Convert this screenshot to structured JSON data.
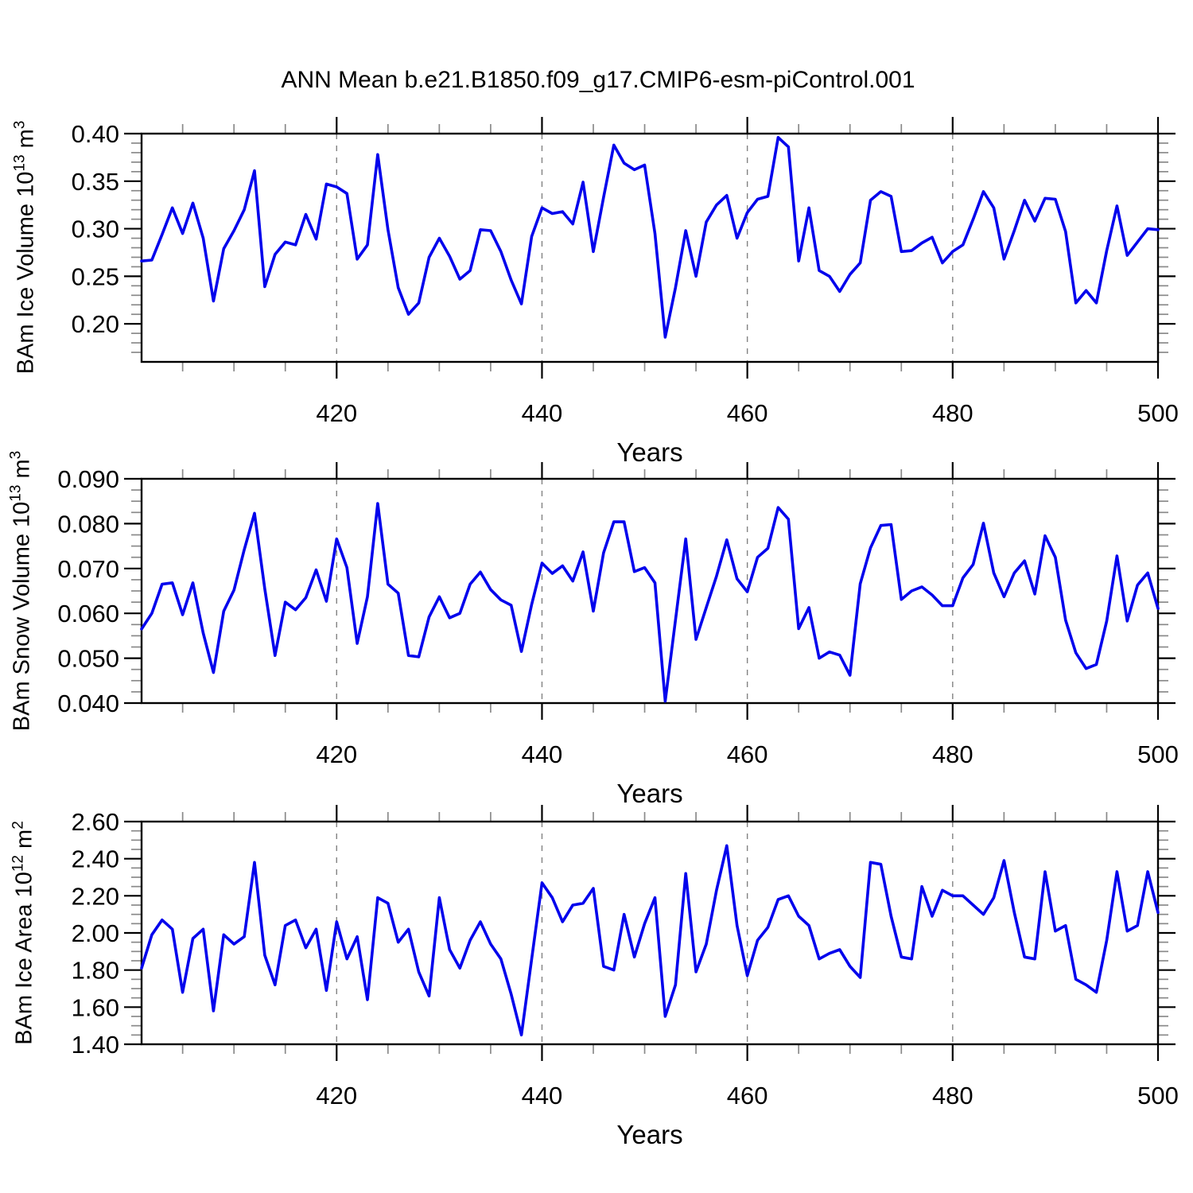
{
  "title": "ANN Mean b.e21.B1850.f09_g17.CMIP6-esm-piControl.001",
  "line_color": "#0202EC",
  "frame_color": "#000000",
  "grid_color": "#828282",
  "minor_tick_color": "#8a8a8a",
  "chart_data": [
    {
      "type": "line",
      "series_name": "BAm Ice Volume",
      "ylabel_prefix": "BAm Ice Volume 10",
      "ylabel_exp": "13",
      "ylabel_unit": " m",
      "ylabel_unit_exp": "3",
      "xlabel": "Years",
      "xlim": [
        401,
        500
      ],
      "ylim": [
        0.16,
        0.4
      ],
      "x_start": 401,
      "x_major_ticks": [
        420,
        440,
        460,
        480,
        500
      ],
      "x_major_labels": [
        "420",
        "440",
        "460",
        "480",
        "500"
      ],
      "x_minor_step": 5,
      "x_gridlines": [
        420,
        440,
        460,
        480
      ],
      "y_major_ticks": [
        0.2,
        0.25,
        0.3,
        0.35,
        0.4
      ],
      "y_major_labels": [
        "0.20",
        "0.25",
        "0.30",
        "0.35",
        "0.40"
      ],
      "y_minor_step": 0.01,
      "grid": "x-dashed",
      "legend": "none",
      "values": [
        0.266,
        0.267,
        0.294,
        0.322,
        0.295,
        0.327,
        0.29,
        0.224,
        0.279,
        0.298,
        0.32,
        0.361,
        0.239,
        0.273,
        0.286,
        0.283,
        0.315,
        0.289,
        0.347,
        0.344,
        0.337,
        0.268,
        0.283,
        0.378,
        0.299,
        0.238,
        0.21,
        0.222,
        0.27,
        0.29,
        0.271,
        0.247,
        0.256,
        0.299,
        0.298,
        0.276,
        0.246,
        0.221,
        0.292,
        0.322,
        0.316,
        0.318,
        0.305,
        0.349,
        0.276,
        0.333,
        0.388,
        0.369,
        0.362,
        0.367,
        0.295,
        0.186,
        0.238,
        0.298,
        0.25,
        0.307,
        0.325,
        0.335,
        0.29,
        0.317,
        0.331,
        0.334,
        0.396,
        0.386,
        0.266,
        0.322,
        0.256,
        0.25,
        0.234,
        0.252,
        0.264,
        0.33,
        0.339,
        0.334,
        0.276,
        0.277,
        0.285,
        0.291,
        0.264,
        0.276,
        0.283,
        0.31,
        0.339,
        0.322,
        0.268,
        0.298,
        0.33,
        0.308,
        0.332,
        0.331,
        0.297,
        0.222,
        0.235,
        0.222,
        0.277,
        0.324,
        0.272,
        0.286,
        0.3,
        0.299
      ]
    },
    {
      "type": "line",
      "series_name": "BAm Snow Volume",
      "ylabel_prefix": "BAm Snow Volume 10",
      "ylabel_exp": "13",
      "ylabel_unit": " m",
      "ylabel_unit_exp": "3",
      "xlabel": "Years",
      "xlim": [
        401,
        500
      ],
      "ylim": [
        0.04,
        0.09
      ],
      "x_start": 401,
      "x_major_ticks": [
        420,
        440,
        460,
        480,
        500
      ],
      "x_major_labels": [
        "420",
        "440",
        "460",
        "480",
        "500"
      ],
      "x_minor_step": 5,
      "x_gridlines": [
        420,
        440,
        460,
        480
      ],
      "y_major_ticks": [
        0.04,
        0.05,
        0.06,
        0.07,
        0.08,
        0.09
      ],
      "y_major_labels": [
        "0.040",
        "0.050",
        "0.060",
        "0.070",
        "0.080",
        "0.090"
      ],
      "y_minor_step": 0.0025,
      "grid": "x-dashed",
      "legend": "none",
      "values": [
        0.0565,
        0.06,
        0.0665,
        0.0668,
        0.0597,
        0.0668,
        0.0556,
        0.0468,
        0.0605,
        0.0652,
        0.0742,
        0.0823,
        0.0655,
        0.0506,
        0.0625,
        0.0608,
        0.0635,
        0.0697,
        0.0627,
        0.0766,
        0.0702,
        0.0533,
        0.0637,
        0.0845,
        0.0665,
        0.0645,
        0.0506,
        0.0503,
        0.0592,
        0.0637,
        0.059,
        0.06,
        0.0665,
        0.0692,
        0.0653,
        0.063,
        0.0618,
        0.0515,
        0.062,
        0.0712,
        0.0689,
        0.0706,
        0.0672,
        0.0737,
        0.0605,
        0.0735,
        0.0804,
        0.0804,
        0.0693,
        0.0702,
        0.0668,
        0.0404,
        0.0585,
        0.0766,
        0.0542,
        0.0613,
        0.0683,
        0.0764,
        0.0677,
        0.0648,
        0.0725,
        0.0745,
        0.0836,
        0.081,
        0.0566,
        0.0613,
        0.05,
        0.0514,
        0.0507,
        0.0462,
        0.0666,
        0.0746,
        0.0796,
        0.0798,
        0.0631,
        0.065,
        0.0659,
        0.0641,
        0.0617,
        0.0617,
        0.0679,
        0.0709,
        0.0801,
        0.069,
        0.0637,
        0.069,
        0.0717,
        0.0643,
        0.0773,
        0.0725,
        0.0585,
        0.0512,
        0.0477,
        0.0486,
        0.0583,
        0.0728,
        0.0583,
        0.0663,
        0.069,
        0.0611
      ]
    },
    {
      "type": "line",
      "series_name": "BAm Ice Area",
      "ylabel_prefix": "BAm Ice Area 10",
      "ylabel_exp": "12",
      "ylabel_unit": " m",
      "ylabel_unit_exp": "2",
      "xlabel": "Years",
      "xlim": [
        401,
        500
      ],
      "ylim": [
        1.4,
        2.6
      ],
      "x_start": 401,
      "x_major_ticks": [
        420,
        440,
        460,
        480,
        500
      ],
      "x_major_labels": [
        "420",
        "440",
        "460",
        "480",
        "500"
      ],
      "x_minor_step": 5,
      "x_gridlines": [
        420,
        440,
        460,
        480
      ],
      "y_major_ticks": [
        1.4,
        1.6,
        1.8,
        2.0,
        2.2,
        2.4,
        2.6
      ],
      "y_major_labels": [
        "1.40",
        "1.60",
        "1.80",
        "2.00",
        "2.20",
        "2.40",
        "2.60"
      ],
      "y_minor_step": 0.05,
      "grid": "x-dashed",
      "legend": "none",
      "values": [
        1.81,
        1.99,
        2.07,
        2.02,
        1.68,
        1.97,
        2.02,
        1.58,
        1.99,
        1.94,
        1.98,
        2.38,
        1.88,
        1.72,
        2.04,
        2.07,
        1.92,
        2.02,
        1.69,
        2.06,
        1.86,
        1.98,
        1.64,
        2.19,
        2.16,
        1.95,
        2.02,
        1.79,
        1.66,
        2.19,
        1.91,
        1.81,
        1.96,
        2.06,
        1.94,
        1.86,
        1.67,
        1.45,
        1.86,
        2.27,
        2.19,
        2.06,
        2.15,
        2.16,
        2.24,
        1.82,
        1.8,
        2.1,
        1.87,
        2.05,
        2.19,
        1.55,
        1.72,
        2.32,
        1.79,
        1.94,
        2.23,
        2.47,
        2.04,
        1.77,
        1.96,
        2.03,
        2.18,
        2.2,
        2.09,
        2.04,
        1.86,
        1.89,
        1.91,
        1.82,
        1.76,
        2.38,
        2.37,
        2.09,
        1.87,
        1.86,
        2.25,
        2.09,
        2.23,
        2.2,
        2.2,
        2.15,
        2.1,
        2.19,
        2.39,
        2.11,
        1.87,
        1.86,
        2.33,
        2.01,
        2.04,
        1.75,
        1.72,
        1.68,
        1.96,
        2.33,
        2.01,
        2.04,
        2.33,
        2.11
      ]
    }
  ]
}
